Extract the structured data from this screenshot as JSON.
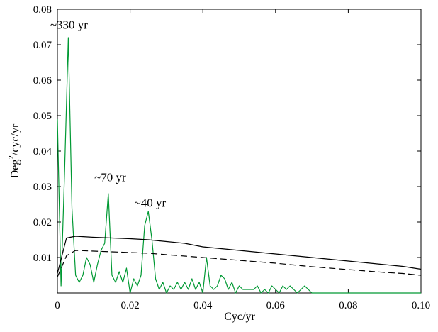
{
  "chart_data": {
    "type": "line",
    "xlabel": "Cyc/yr",
    "ylabel_base": "Deg",
    "ylabel_sup": "2",
    "ylabel_rest": "/cyc/yr",
    "xlim": [
      0,
      0.1
    ],
    "ylim": [
      0,
      0.08
    ],
    "xticks": [
      0,
      0.02,
      0.04,
      0.06,
      0.08,
      0.1
    ],
    "xtick_labels": [
      "0",
      "0.02",
      "0.04",
      "0.06",
      "0.08",
      "0.10"
    ],
    "yticks": [
      0.01,
      0.02,
      0.03,
      0.04,
      0.05,
      0.06,
      0.07,
      0.08
    ],
    "ytick_labels": [
      "0.01",
      "0.02",
      "0.03",
      "0.04",
      "0.05",
      "0.06",
      "0.07",
      "0.08"
    ],
    "grid": false,
    "annotations": [
      {
        "text": "~330 yr",
        "x": 0.0032,
        "y": 0.0745
      },
      {
        "text": "~70 yr",
        "x": 0.0145,
        "y": 0.0315
      },
      {
        "text": "~40 yr",
        "x": 0.0255,
        "y": 0.0243
      }
    ],
    "series": [
      {
        "style": "solid-green",
        "color": "#009933",
        "x": [
          0,
          0.001,
          0.002,
          0.003,
          0.004,
          0.005,
          0.006,
          0.007,
          0.008,
          0.009,
          0.01,
          0.011,
          0.012,
          0.013,
          0.014,
          0.015,
          0.016,
          0.017,
          0.018,
          0.019,
          0.02,
          0.021,
          0.022,
          0.023,
          0.024,
          0.025,
          0.026,
          0.027,
          0.028,
          0.029,
          0.03,
          0.031,
          0.032,
          0.033,
          0.034,
          0.035,
          0.036,
          0.037,
          0.038,
          0.039,
          0.04,
          0.041,
          0.042,
          0.043,
          0.044,
          0.045,
          0.046,
          0.047,
          0.048,
          0.049,
          0.05,
          0.051,
          0.052,
          0.053,
          0.054,
          0.055,
          0.056,
          0.057,
          0.058,
          0.059,
          0.06,
          0.061,
          0.062,
          0.063,
          0.064,
          0.065,
          0.066,
          0.067,
          0.068,
          0.069,
          0.07,
          0.072,
          0.075,
          0.08,
          0.085,
          0.09,
          0.095,
          0.1
        ],
        "y": [
          0.049,
          0.002,
          0.035,
          0.072,
          0.024,
          0.005,
          0.003,
          0.005,
          0.01,
          0.008,
          0.003,
          0.008,
          0.012,
          0.014,
          0.028,
          0.005,
          0.003,
          0.006,
          0.003,
          0.007,
          0.0,
          0.004,
          0.002,
          0.005,
          0.019,
          0.023,
          0.015,
          0.004,
          0.001,
          0.003,
          0.0,
          0.002,
          0.001,
          0.003,
          0.001,
          0.003,
          0.001,
          0.004,
          0.001,
          0.003,
          0.0,
          0.01,
          0.002,
          0.001,
          0.002,
          0.005,
          0.004,
          0.001,
          0.003,
          0.0,
          0.002,
          0.001,
          0.001,
          0.001,
          0.001,
          0.002,
          0.0,
          0.001,
          0.0,
          0.002,
          0.001,
          0.0,
          0.002,
          0.001,
          0.002,
          0.001,
          0.0,
          0.001,
          0.002,
          0.001,
          0.0,
          0.0,
          0.0,
          0.0,
          0.0,
          0.0,
          0.0,
          0.0
        ]
      },
      {
        "style": "solid-black",
        "color": "#000000",
        "x": [
          0,
          0.0025,
          0.005,
          0.01,
          0.015,
          0.02,
          0.025,
          0.03,
          0.035,
          0.04,
          0.045,
          0.05,
          0.055,
          0.06,
          0.065,
          0.07,
          0.075,
          0.08,
          0.085,
          0.09,
          0.095,
          0.1
        ],
        "y": [
          0.0055,
          0.0155,
          0.016,
          0.0157,
          0.0155,
          0.0153,
          0.015,
          0.0145,
          0.014,
          0.013,
          0.0125,
          0.012,
          0.0115,
          0.011,
          0.0105,
          0.01,
          0.0095,
          0.009,
          0.0085,
          0.008,
          0.0075,
          0.0067
        ]
      },
      {
        "style": "dashed-black",
        "color": "#000000",
        "x": [
          0,
          0.0025,
          0.005,
          0.01,
          0.015,
          0.02,
          0.025,
          0.03,
          0.035,
          0.04,
          0.045,
          0.05,
          0.055,
          0.06,
          0.065,
          0.07,
          0.075,
          0.08,
          0.085,
          0.09,
          0.095,
          0.1
        ],
        "y": [
          0.0045,
          0.0105,
          0.012,
          0.0118,
          0.0116,
          0.0114,
          0.0112,
          0.0108,
          0.0104,
          0.01,
          0.0096,
          0.0092,
          0.0088,
          0.0084,
          0.0079,
          0.0074,
          0.007,
          0.0066,
          0.0062,
          0.0058,
          0.0055,
          0.005
        ]
      }
    ]
  }
}
